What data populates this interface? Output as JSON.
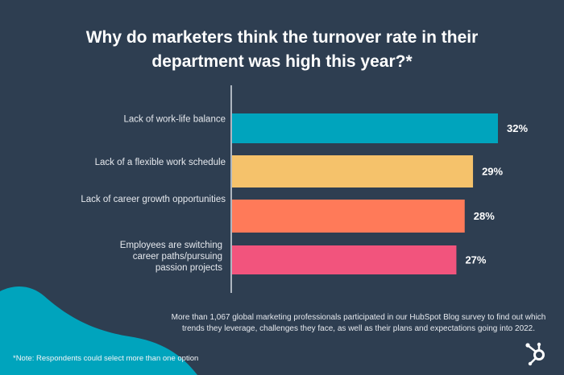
{
  "title_lines": [
    "Why do marketers think the turnover rate in their",
    "department was high this year?*"
  ],
  "chart_data": {
    "type": "bar",
    "orientation": "horizontal",
    "title": "Why do marketers think the turnover rate in their department was high this year?*",
    "categories": [
      [
        "Lack of work-life balance"
      ],
      [
        "Lack of a flexible work schedule"
      ],
      [
        "Lack of career growth opportunities"
      ],
      [
        "Employees are switching",
        "career paths/pursuing",
        "passion projects"
      ]
    ],
    "values": [
      32,
      29,
      28,
      27
    ],
    "value_labels": [
      "32%",
      "29%",
      "28%",
      "27%"
    ],
    "colors": [
      "#00a4bd",
      "#f5c26b",
      "#ff7a59",
      "#f2547d"
    ],
    "unit": "%",
    "xlabel": "",
    "ylabel": "",
    "grid": false,
    "legend": "none"
  },
  "footnote": "More than 1,067 global marketing professionals participated in our HubSpot Blog survey to find out which trends they leverage, challenges they face, as well as their plans and expectations going into 2022.",
  "note": "*Note: Respondents could select more than one option",
  "colors": {
    "background": "#2e3e51",
    "blob": "#00a4bd",
    "axis": "#d9dee5"
  }
}
